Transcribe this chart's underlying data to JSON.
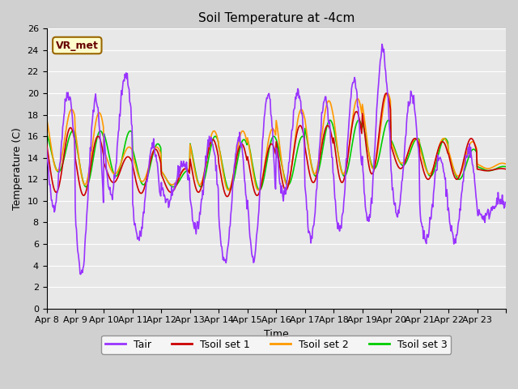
{
  "title": "Soil Temperature at -4cm",
  "xlabel": "Time",
  "ylabel": "Temperature (C)",
  "ylim": [
    0,
    26
  ],
  "yticks": [
    0,
    2,
    4,
    6,
    8,
    10,
    12,
    14,
    16,
    18,
    20,
    22,
    24,
    26
  ],
  "xtick_labels": [
    "Apr 8",
    "Apr 9",
    "Apr 10",
    "Apr 11",
    "Apr 12",
    "Apr 13",
    "Apr 14",
    "Apr 15",
    "Apr 16",
    "Apr 17",
    "Apr 18",
    "Apr 19",
    "Apr 20",
    "Apr 21",
    "Apr 22",
    "Apr 23",
    ""
  ],
  "colors": {
    "Tair": "#9933ff",
    "Tsoil1": "#cc0000",
    "Tsoil2": "#ff9900",
    "Tsoil3": "#00cc00"
  },
  "annotation_text": "VR_met",
  "annotation_facecolor": "#ffffcc",
  "annotation_edgecolor": "#996600",
  "plot_bg_color": "#e8e8e8",
  "linewidth": 1.2,
  "total_days": 16,
  "tair_daily_cycles": [
    {
      "min": 9.5,
      "max": 20.0,
      "min_hour": 6,
      "max_hour": 15
    },
    {
      "min": 3.2,
      "max": 19.5,
      "min_hour": 5,
      "max_hour": 14
    },
    {
      "min": 10.5,
      "max": 21.8,
      "min_hour": 6,
      "max_hour": 15
    },
    {
      "min": 6.5,
      "max": 15.0,
      "min_hour": 5,
      "max_hour": 14
    },
    {
      "min": 9.8,
      "max": 13.5,
      "min_hour": 6,
      "max_hour": 14
    },
    {
      "min": 7.3,
      "max": 15.8,
      "min_hour": 5,
      "max_hour": 14
    },
    {
      "min": 4.3,
      "max": 15.8,
      "min_hour": 5,
      "max_hour": 14
    },
    {
      "min": 4.7,
      "max": 19.8,
      "min_hour": 5,
      "max_hour": 14
    },
    {
      "min": 10.5,
      "max": 19.8,
      "min_hour": 6,
      "max_hour": 15
    },
    {
      "min": 6.7,
      "max": 19.5,
      "min_hour": 5,
      "max_hour": 14
    },
    {
      "min": 7.2,
      "max": 21.3,
      "min_hour": 5,
      "max_hour": 15
    },
    {
      "min": 8.2,
      "max": 24.0,
      "min_hour": 5,
      "max_hour": 14
    },
    {
      "min": 8.7,
      "max": 19.8,
      "min_hour": 5,
      "max_hour": 14
    },
    {
      "min": 6.5,
      "max": 14.0,
      "min_hour": 5,
      "max_hour": 14
    },
    {
      "min": 6.3,
      "max": 14.8,
      "min_hour": 5,
      "max_hour": 14
    },
    {
      "min": 8.5,
      "max": 10.0,
      "min_hour": 6,
      "max_hour": 14
    }
  ],
  "tsoil1_daily_cycles": [
    {
      "min": 10.8,
      "max": 16.8,
      "min_hour": 8,
      "max_hour": 17
    },
    {
      "min": 10.5,
      "max": 16.0,
      "min_hour": 7,
      "max_hour": 16
    },
    {
      "min": 11.7,
      "max": 14.1,
      "min_hour": 8,
      "max_hour": 16
    },
    {
      "min": 10.7,
      "max": 14.8,
      "min_hour": 7,
      "max_hour": 16
    },
    {
      "min": 10.8,
      "max": 13.0,
      "min_hour": 8,
      "max_hour": 16
    },
    {
      "min": 10.8,
      "max": 15.7,
      "min_hour": 7,
      "max_hour": 16
    },
    {
      "min": 10.4,
      "max": 15.3,
      "min_hour": 7,
      "max_hour": 16
    },
    {
      "min": 10.5,
      "max": 15.3,
      "min_hour": 8,
      "max_hour": 16
    },
    {
      "min": 11.0,
      "max": 17.0,
      "min_hour": 8,
      "max_hour": 17
    },
    {
      "min": 11.7,
      "max": 17.0,
      "min_hour": 7,
      "max_hour": 16
    },
    {
      "min": 11.7,
      "max": 18.3,
      "min_hour": 7,
      "max_hour": 17
    },
    {
      "min": 12.5,
      "max": 20.0,
      "min_hour": 8,
      "max_hour": 16
    },
    {
      "min": 13.0,
      "max": 15.8,
      "min_hour": 8,
      "max_hour": 16
    },
    {
      "min": 12.0,
      "max": 15.5,
      "min_hour": 7,
      "max_hour": 16
    },
    {
      "min": 12.0,
      "max": 15.8,
      "min_hour": 7,
      "max_hour": 16
    },
    {
      "min": 12.8,
      "max": 13.0,
      "min_hour": 8,
      "max_hour": 14
    }
  ],
  "tsoil2_daily_cycles": [
    {
      "min": 12.8,
      "max": 18.5,
      "min_hour": 9,
      "max_hour": 18
    },
    {
      "min": 11.5,
      "max": 18.2,
      "min_hour": 8,
      "max_hour": 17
    },
    {
      "min": 12.5,
      "max": 15.0,
      "min_hour": 9,
      "max_hour": 17
    },
    {
      "min": 11.8,
      "max": 15.0,
      "min_hour": 8,
      "max_hour": 17
    },
    {
      "min": 11.5,
      "max": 13.0,
      "min_hour": 9,
      "max_hour": 17
    },
    {
      "min": 11.5,
      "max": 16.5,
      "min_hour": 8,
      "max_hour": 17
    },
    {
      "min": 11.0,
      "max": 16.5,
      "min_hour": 8,
      "max_hour": 17
    },
    {
      "min": 11.0,
      "max": 16.7,
      "min_hour": 9,
      "max_hour": 18
    },
    {
      "min": 11.5,
      "max": 18.5,
      "min_hour": 9,
      "max_hour": 18
    },
    {
      "min": 12.5,
      "max": 19.3,
      "min_hour": 8,
      "max_hour": 17
    },
    {
      "min": 12.5,
      "max": 19.5,
      "min_hour": 8,
      "max_hour": 18
    },
    {
      "min": 13.0,
      "max": 20.0,
      "min_hour": 9,
      "max_hour": 17
    },
    {
      "min": 13.5,
      "max": 15.8,
      "min_hour": 9,
      "max_hour": 17
    },
    {
      "min": 12.5,
      "max": 15.8,
      "min_hour": 8,
      "max_hour": 17
    },
    {
      "min": 12.3,
      "max": 15.5,
      "min_hour": 8,
      "max_hour": 17
    },
    {
      "min": 13.0,
      "max": 13.5,
      "min_hour": 9,
      "max_hour": 14
    }
  ],
  "tsoil3_daily_cycles": [
    {
      "min": 12.7,
      "max": 16.5,
      "min_hour": 10,
      "max_hour": 18
    },
    {
      "min": 11.3,
      "max": 16.5,
      "min_hour": 9,
      "max_hour": 17
    },
    {
      "min": 12.3,
      "max": 16.5,
      "min_hour": 10,
      "max_hour": 18
    },
    {
      "min": 11.5,
      "max": 15.3,
      "min_hour": 9,
      "max_hour": 17
    },
    {
      "min": 11.3,
      "max": 12.8,
      "min_hour": 10,
      "max_hour": 17
    },
    {
      "min": 11.3,
      "max": 16.0,
      "min_hour": 9,
      "max_hour": 17
    },
    {
      "min": 11.0,
      "max": 15.7,
      "min_hour": 9,
      "max_hour": 17
    },
    {
      "min": 11.0,
      "max": 16.0,
      "min_hour": 10,
      "max_hour": 18
    },
    {
      "min": 11.5,
      "max": 16.0,
      "min_hour": 10,
      "max_hour": 18
    },
    {
      "min": 12.3,
      "max": 17.5,
      "min_hour": 9,
      "max_hour": 17
    },
    {
      "min": 12.3,
      "max": 17.5,
      "min_hour": 9,
      "max_hour": 18
    },
    {
      "min": 13.0,
      "max": 17.5,
      "min_hour": 10,
      "max_hour": 17
    },
    {
      "min": 13.3,
      "max": 15.8,
      "min_hour": 10,
      "max_hour": 17
    },
    {
      "min": 12.3,
      "max": 15.8,
      "min_hour": 9,
      "max_hour": 17
    },
    {
      "min": 12.0,
      "max": 14.8,
      "min_hour": 9,
      "max_hour": 17
    },
    {
      "min": 12.8,
      "max": 13.2,
      "min_hour": 10,
      "max_hour": 14
    }
  ]
}
